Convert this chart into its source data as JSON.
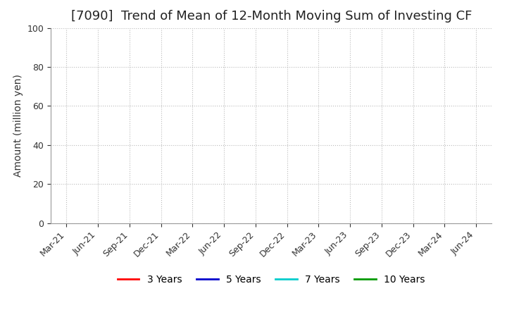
{
  "title": "[7090]  Trend of Mean of 12-Month Moving Sum of Investing CF",
  "ylabel": "Amount (million yen)",
  "ylim": [
    0,
    100
  ],
  "yticks": [
    0,
    20,
    40,
    60,
    80,
    100
  ],
  "x_labels": [
    "Mar-21",
    "Jun-21",
    "Sep-21",
    "Dec-21",
    "Mar-22",
    "Jun-22",
    "Sep-22",
    "Dec-22",
    "Mar-23",
    "Jun-23",
    "Sep-23",
    "Dec-23",
    "Mar-24",
    "Jun-24"
  ],
  "legend_entries": [
    {
      "label": "3 Years",
      "color": "#FF0000"
    },
    {
      "label": "5 Years",
      "color": "#0000CC"
    },
    {
      "label": "7 Years",
      "color": "#00CCCC"
    },
    {
      "label": "10 Years",
      "color": "#009900"
    }
  ],
  "background_color": "#FFFFFF",
  "plot_bg_color": "#FFFFFF",
  "grid_color": "#BBBBBB",
  "title_fontsize": 13,
  "axis_label_fontsize": 10,
  "tick_fontsize": 9,
  "legend_fontsize": 10
}
